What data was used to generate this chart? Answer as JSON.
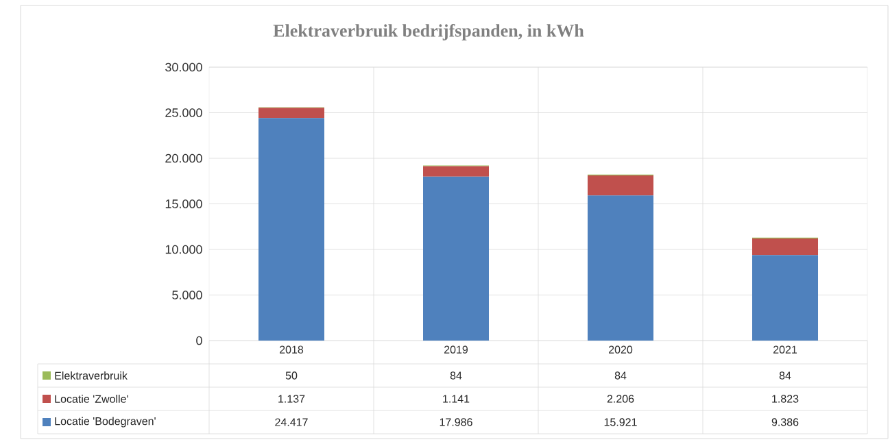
{
  "chart_data": {
    "type": "bar",
    "stacked": true,
    "title": "Elektraverbruik bedrijfspanden, in kWh",
    "categories": [
      "2018",
      "2019",
      "2020",
      "2021"
    ],
    "series": [
      {
        "name": "Locatie 'Bodegraven'",
        "color": "#4f81bd",
        "values": [
          24417,
          17986,
          15921,
          9386
        ],
        "value_labels": [
          "24.417",
          "17.986",
          "15.921",
          "9.386"
        ]
      },
      {
        "name": "Locatie 'Zwolle'",
        "color": "#c0504d",
        "values": [
          1137,
          1141,
          2206,
          1823
        ],
        "value_labels": [
          "1.137",
          "1.141",
          "2.206",
          "1.823"
        ]
      },
      {
        "name": "Elektraverbruik",
        "color": "#9bbb59",
        "values": [
          50,
          84,
          84,
          84
        ],
        "value_labels": [
          "50",
          "84",
          "84",
          "84"
        ]
      }
    ],
    "ylim": [
      0,
      30000
    ],
    "yticks": [
      {
        "value": 0,
        "label": "0"
      },
      {
        "value": 5000,
        "label": "5.000"
      },
      {
        "value": 10000,
        "label": "10.000"
      },
      {
        "value": 15000,
        "label": "15.000"
      },
      {
        "value": 20000,
        "label": "20.000"
      },
      {
        "value": 25000,
        "label": "25.000"
      },
      {
        "value": 30000,
        "label": "30.000"
      }
    ],
    "grid": "y",
    "legend": "bottom"
  }
}
